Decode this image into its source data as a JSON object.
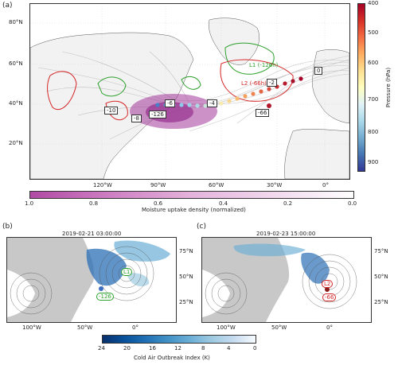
{
  "panel_a": {
    "letter": "(a)",
    "lat_labels": [
      "80°N",
      "60°N",
      "40°N",
      "20°N"
    ],
    "lon_labels": [
      "120°W",
      "90°W",
      "60°W",
      "30°W",
      "0°"
    ],
    "trajectory_labels": [
      "0",
      "-2",
      "-4",
      "-6",
      "-8",
      "-10",
      "-66",
      "-126"
    ],
    "cyclone_labels": {
      "l1": "L1 (-126h)",
      "l2": "L2 (-66h)"
    },
    "colorbar_pressure": {
      "label": "Pressure (hPa)",
      "ticks": [
        "400",
        "500",
        "600",
        "700",
        "800",
        "900"
      ]
    },
    "colorbar_moisture": {
      "label": "Moisture uptake density (normalized)",
      "ticks": [
        "1.0",
        "0.8",
        "0.6",
        "0.4",
        "0.2",
        "0.0"
      ]
    }
  },
  "panel_b": {
    "letter": "(b)",
    "title": "2019-02-21 03:00:00",
    "lat_labels": [
      "75°N",
      "50°N",
      "25°N"
    ],
    "lon_labels": [
      "100°W",
      "50°W",
      "0°"
    ],
    "low_label": "L1",
    "marker_label": "-126"
  },
  "panel_c": {
    "letter": "(c)",
    "title": "2019-02-23 15:00:00",
    "lat_labels": [
      "75°N",
      "50°N",
      "25°N"
    ],
    "lon_labels": [
      "100°W",
      "50°W",
      "0°"
    ],
    "low_label": "L2",
    "marker_label": "-66"
  },
  "colorbar_caoi": {
    "label": "Cold Air Outbreak Index (K)",
    "ticks": [
      "24",
      "20",
      "16",
      "12",
      "8",
      "4",
      "0"
    ]
  },
  "colors": {
    "land": "#c8c8c8",
    "ocean": "#ffffff",
    "trajectory_gray": "#9a9a9a",
    "contour_green": "#2ca02c",
    "contour_red": "#d62728",
    "cao_blue": "#2b6fb5"
  }
}
